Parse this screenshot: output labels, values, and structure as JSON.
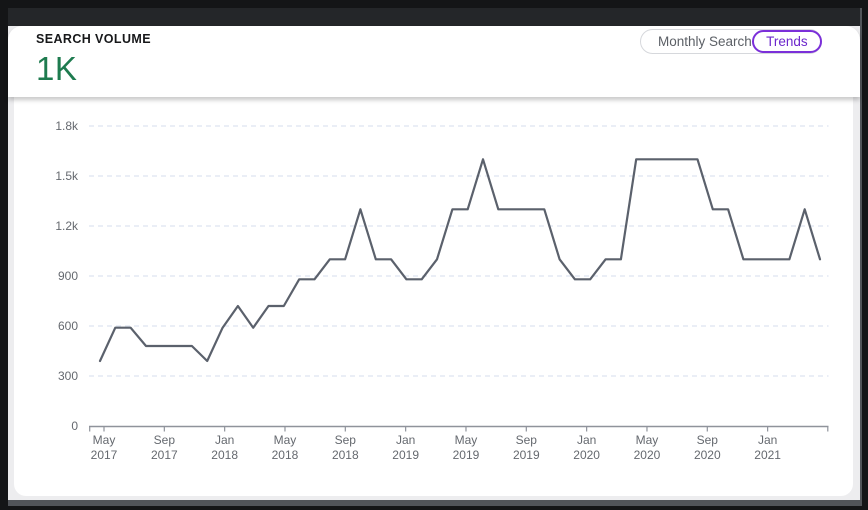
{
  "header": {
    "title": "SEARCH VOLUME",
    "current_value": "1K",
    "toggle": {
      "options": [
        {
          "label": "Monthly Search",
          "selected": false
        },
        {
          "label": "Trends",
          "selected": true
        }
      ]
    }
  },
  "colors": {
    "value_green": "#1e7b4f",
    "accent_purple": "#7b2fd9",
    "line": "#5b616c",
    "grid": "#dde4f1",
    "axis": "#8f939b",
    "tick_text": "#65696f",
    "card_bg": "#ffffff",
    "page_bg": "#ededef",
    "topbar_dark": "#242629"
  },
  "chart_data": {
    "type": "line",
    "title": "SEARCH VOLUME",
    "xlabel": "",
    "ylabel": "",
    "ylim": [
      0,
      1800
    ],
    "grid": "horizontal-dashed",
    "legend": "none",
    "x": [
      "2017-05",
      "2017-06",
      "2017-07",
      "2017-08",
      "2017-09",
      "2017-10",
      "2017-11",
      "2017-12",
      "2018-01",
      "2018-02",
      "2018-03",
      "2018-04",
      "2018-05",
      "2018-06",
      "2018-07",
      "2018-08",
      "2018-09",
      "2018-10",
      "2018-11",
      "2018-12",
      "2019-01",
      "2019-02",
      "2019-03",
      "2019-04",
      "2019-05",
      "2019-06",
      "2019-07",
      "2019-08",
      "2019-09",
      "2019-10",
      "2019-11",
      "2019-12",
      "2020-01",
      "2020-02",
      "2020-03",
      "2020-04",
      "2020-05",
      "2020-06",
      "2020-07",
      "2020-08",
      "2020-09",
      "2020-10",
      "2020-11",
      "2020-12",
      "2021-01",
      "2021-02",
      "2021-03",
      "2021-04"
    ],
    "values": [
      390,
      590,
      590,
      480,
      480,
      480,
      480,
      390,
      590,
      720,
      590,
      720,
      720,
      880,
      880,
      1000,
      1000,
      1300,
      1000,
      1000,
      880,
      880,
      1000,
      1300,
      1300,
      1600,
      1300,
      1300,
      1300,
      1300,
      1000,
      880,
      880,
      1000,
      1000,
      1600,
      1600,
      1600,
      1600,
      1600,
      1300,
      1300,
      1000,
      1000,
      1000,
      1000,
      1300,
      1000
    ],
    "y_tick_values": [
      0,
      300,
      600,
      900,
      1200,
      1500,
      1800
    ],
    "y_tick_labels": [
      "0",
      "300",
      "600",
      "900",
      "1.2k",
      "1.5k",
      "1.8k"
    ],
    "x_tick_labels": [
      {
        "month": "May",
        "year": "2017"
      },
      {
        "month": "Sep",
        "year": "2017"
      },
      {
        "month": "Jan",
        "year": "2018"
      },
      {
        "month": "May",
        "year": "2018"
      },
      {
        "month": "Sep",
        "year": "2018"
      },
      {
        "month": "Jan",
        "year": "2019"
      },
      {
        "month": "May",
        "year": "2019"
      },
      {
        "month": "Sep",
        "year": "2019"
      },
      {
        "month": "Jan",
        "year": "2020"
      },
      {
        "month": "May",
        "year": "2020"
      },
      {
        "month": "Sep",
        "year": "2020"
      },
      {
        "month": "Jan",
        "year": "2021"
      }
    ]
  }
}
